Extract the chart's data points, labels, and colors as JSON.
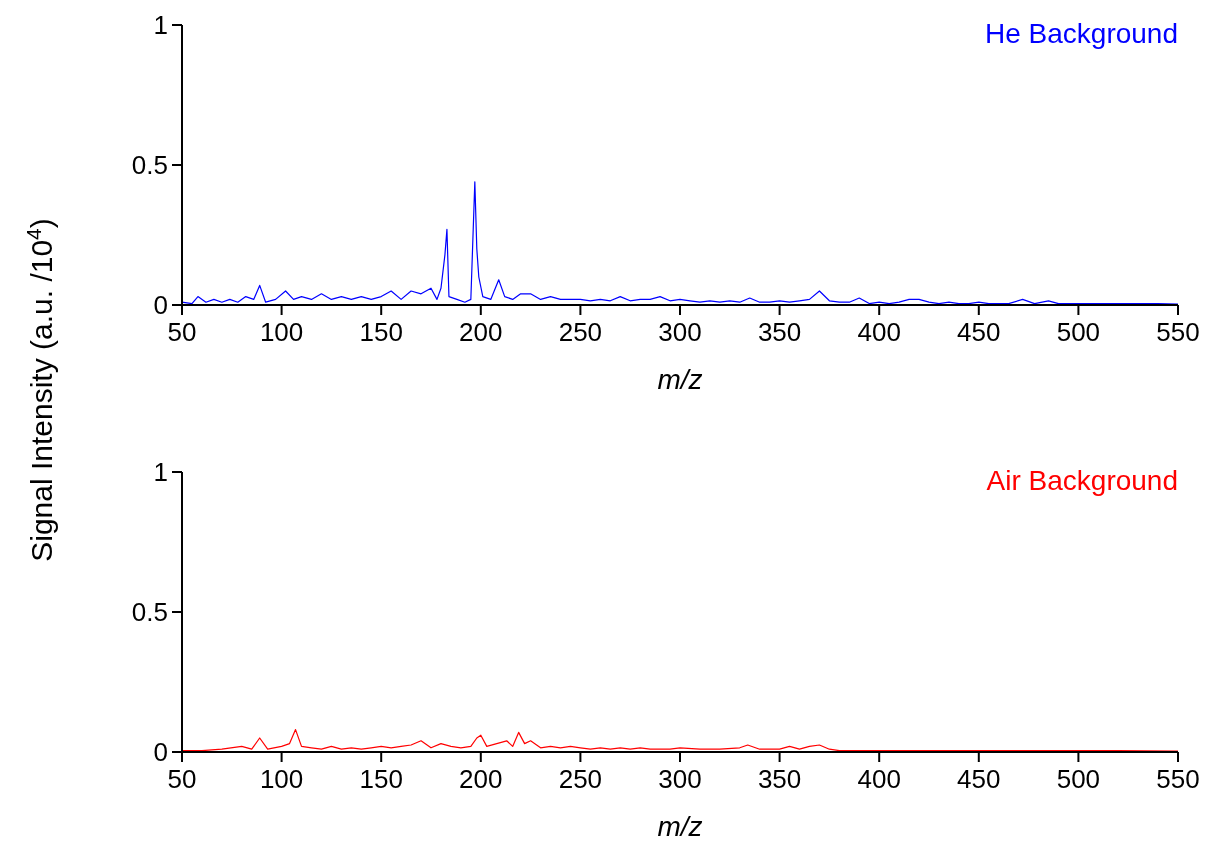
{
  "chart_data": [
    {
      "type": "line",
      "xlabel": "m/z",
      "ylabel": "Signal Intensity (a.u. /10$^{4}$)",
      "xlim": [
        50,
        550
      ],
      "ylim": [
        0,
        1
      ],
      "xticks": [
        50,
        100,
        150,
        200,
        250,
        300,
        350,
        400,
        450,
        500,
        550
      ],
      "yticks": [
        0,
        0.5,
        1
      ],
      "grid": false,
      "legend": "top right",
      "line_style": "solid",
      "series": [
        {
          "name": "He Background",
          "color": "#0000ff",
          "x": [
            50,
            55,
            58,
            62,
            66,
            70,
            74,
            78,
            82,
            86,
            89,
            92,
            97,
            102,
            106,
            110,
            115,
            120,
            125,
            130,
            135,
            140,
            145,
            150,
            155,
            160,
            165,
            170,
            175,
            178,
            180,
            182,
            183,
            184,
            188,
            192,
            195,
            197,
            198,
            199,
            201,
            205,
            209,
            212,
            216,
            220,
            225,
            230,
            235,
            240,
            245,
            250,
            255,
            260,
            265,
            270,
            275,
            280,
            285,
            290,
            295,
            300,
            305,
            310,
            315,
            320,
            325,
            330,
            335,
            340,
            345,
            350,
            355,
            360,
            365,
            370,
            375,
            380,
            385,
            390,
            395,
            400,
            405,
            410,
            415,
            420,
            425,
            430,
            435,
            440,
            445,
            450,
            455,
            460,
            465,
            472,
            478,
            485,
            490,
            500,
            510,
            520,
            530,
            540,
            550
          ],
          "values": [
            0.01,
            0.005,
            0.03,
            0.01,
            0.02,
            0.01,
            0.02,
            0.01,
            0.03,
            0.02,
            0.07,
            0.01,
            0.02,
            0.05,
            0.02,
            0.03,
            0.02,
            0.04,
            0.02,
            0.03,
            0.02,
            0.03,
            0.02,
            0.03,
            0.05,
            0.02,
            0.05,
            0.04,
            0.06,
            0.02,
            0.06,
            0.18,
            0.27,
            0.03,
            0.02,
            0.01,
            0.02,
            0.44,
            0.2,
            0.1,
            0.03,
            0.02,
            0.09,
            0.03,
            0.02,
            0.04,
            0.04,
            0.02,
            0.03,
            0.02,
            0.02,
            0.02,
            0.015,
            0.02,
            0.015,
            0.03,
            0.015,
            0.02,
            0.02,
            0.03,
            0.015,
            0.02,
            0.015,
            0.01,
            0.015,
            0.01,
            0.015,
            0.01,
            0.025,
            0.01,
            0.01,
            0.015,
            0.01,
            0.015,
            0.02,
            0.05,
            0.015,
            0.01,
            0.01,
            0.025,
            0.005,
            0.01,
            0.005,
            0.01,
            0.02,
            0.02,
            0.01,
            0.005,
            0.01,
            0.005,
            0.005,
            0.01,
            0.005,
            0.005,
            0.005,
            0.02,
            0.005,
            0.015,
            0.005,
            0.005,
            0.005,
            0.005,
            0.005,
            0.005,
            0.003
          ]
        }
      ]
    },
    {
      "type": "line",
      "xlabel": "m/z",
      "xlim": [
        50,
        550
      ],
      "ylim": [
        0,
        1
      ],
      "xticks": [
        50,
        100,
        150,
        200,
        250,
        300,
        350,
        400,
        450,
        500,
        550
      ],
      "yticks": [
        0,
        0.5,
        1
      ],
      "grid": false,
      "legend": "top right",
      "line_style": "solid",
      "series": [
        {
          "name": "Air Background",
          "color": "#ff0000",
          "x": [
            50,
            60,
            70,
            80,
            85,
            89,
            93,
            100,
            104,
            107,
            110,
            115,
            120,
            125,
            130,
            135,
            140,
            145,
            150,
            155,
            160,
            165,
            170,
            175,
            180,
            185,
            190,
            195,
            198,
            200,
            203,
            208,
            213,
            216,
            219,
            222,
            225,
            230,
            235,
            240,
            245,
            250,
            255,
            260,
            265,
            270,
            275,
            280,
            285,
            290,
            295,
            300,
            310,
            320,
            330,
            334,
            340,
            350,
            355,
            360,
            365,
            370,
            375,
            380,
            390,
            400,
            410,
            420,
            430,
            440,
            450,
            460,
            470,
            480,
            490,
            500,
            520,
            550
          ],
          "values": [
            0.005,
            0.005,
            0.01,
            0.02,
            0.01,
            0.05,
            0.01,
            0.02,
            0.03,
            0.08,
            0.02,
            0.015,
            0.01,
            0.02,
            0.01,
            0.015,
            0.01,
            0.015,
            0.02,
            0.015,
            0.02,
            0.025,
            0.04,
            0.015,
            0.03,
            0.02,
            0.015,
            0.02,
            0.05,
            0.06,
            0.02,
            0.03,
            0.04,
            0.02,
            0.07,
            0.03,
            0.04,
            0.015,
            0.02,
            0.015,
            0.02,
            0.015,
            0.01,
            0.015,
            0.01,
            0.015,
            0.01,
            0.015,
            0.01,
            0.01,
            0.01,
            0.015,
            0.01,
            0.01,
            0.015,
            0.025,
            0.01,
            0.01,
            0.02,
            0.01,
            0.02,
            0.025,
            0.01,
            0.005,
            0.005,
            0.005,
            0.005,
            0.005,
            0.005,
            0.005,
            0.005,
            0.005,
            0.005,
            0.005,
            0.005,
            0.005,
            0.005,
            0.003
          ]
        }
      ]
    }
  ]
}
